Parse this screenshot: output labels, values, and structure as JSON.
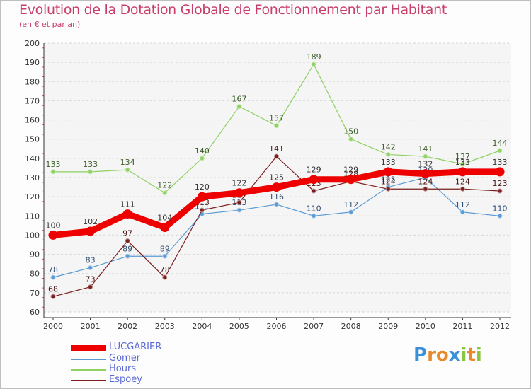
{
  "chart_data": {
    "type": "line",
    "title": "Evolution de la Dotation Globale de Fonctionnement par Habitant",
    "subtitle": "(en € et par an)",
    "xlabel": "",
    "ylabel": "",
    "categories": [
      "2000",
      "2001",
      "2002",
      "2003",
      "2004",
      "2005",
      "2006",
      "2007",
      "2008",
      "2009",
      "2010",
      "2011",
      "2012"
    ],
    "ylim": [
      60,
      200
    ],
    "yticks": [
      60,
      70,
      80,
      90,
      100,
      110,
      120,
      130,
      140,
      150,
      160,
      170,
      180,
      190,
      200
    ],
    "grid": "horizontal",
    "series": [
      {
        "name": "Hours",
        "color": "#8fd162",
        "values": [
          133,
          133,
          134,
          122,
          140,
          167,
          157,
          189,
          150,
          142,
          141,
          137,
          144
        ]
      },
      {
        "name": "Gomer",
        "color": "#5b9bd5",
        "values": [
          78,
          83,
          89,
          89,
          111,
          113,
          116,
          110,
          112,
          125,
          130,
          112,
          110
        ]
      },
      {
        "name": "Espoey",
        "color": "#7a1e1e",
        "values": [
          68,
          73,
          97,
          78,
          113,
          117,
          141,
          123,
          128,
          124,
          124,
          124,
          123
        ]
      },
      {
        "name": "LUCGARIER",
        "color": "#ee0000",
        "values": [
          100,
          102,
          111,
          104,
          120,
          122,
          125,
          129,
          129,
          133,
          132,
          133,
          133
        ]
      }
    ]
  },
  "legend": {
    "items": [
      {
        "label": "LUCGARIER",
        "color": "#ee0000"
      },
      {
        "label": "Gomer",
        "color": "#5b9bd5"
      },
      {
        "label": "Hours",
        "color": "#8fd162"
      },
      {
        "label": "Espoey",
        "color": "#7a1e1e"
      }
    ]
  },
  "logo": {
    "letters": [
      "P",
      "r",
      "o",
      "x",
      "i",
      "t",
      "i"
    ],
    "colors": [
      "#3a8fd8",
      "#e8892e",
      "#e8892e",
      "#3a8fd8",
      "#8ac53e",
      "#e8892e",
      "#8ac53e"
    ]
  }
}
